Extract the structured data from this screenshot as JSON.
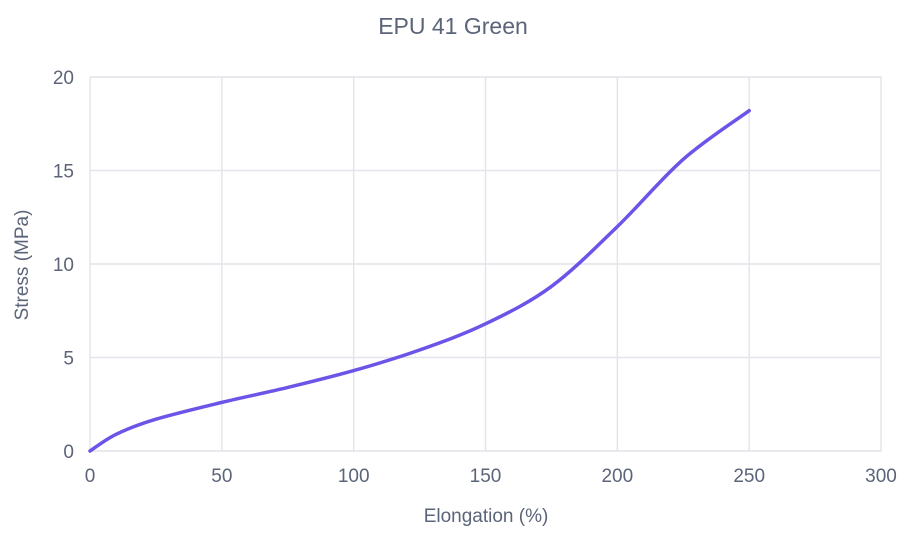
{
  "chart_data": {
    "type": "line",
    "title": "EPU 41 Green",
    "xlabel": "Elongation (%)",
    "ylabel": "Stress (MPa)",
    "xlim": [
      0,
      300
    ],
    "ylim": [
      0,
      20
    ],
    "xticks": [
      0,
      50,
      100,
      150,
      200,
      250,
      300
    ],
    "yticks": [
      0,
      5,
      10,
      15,
      20
    ],
    "grid": true,
    "legend": "none",
    "series": [
      {
        "color": "#6b55e8",
        "x": [
          0,
          10,
          25,
          50,
          75,
          100,
          125,
          150,
          175,
          200,
          225,
          250
        ],
        "y": [
          0,
          0.9,
          1.7,
          2.6,
          3.4,
          4.3,
          5.4,
          6.8,
          8.8,
          12.0,
          15.6,
          18.2
        ]
      }
    ]
  }
}
